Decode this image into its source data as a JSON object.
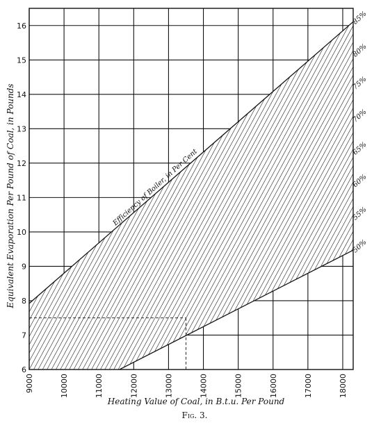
{
  "chart_data": {
    "type": "line",
    "title": "",
    "xlabel": "Heating Value of Coal, in B.t.u. Per Pound",
    "ylabel": "Equivalent Evaporation Per Pound of Coal, in Pounds",
    "xlim": [
      9000,
      18300
    ],
    "ylim": [
      6,
      16.5
    ],
    "x_ticks": [
      "9000",
      "10000",
      "11000",
      "12000",
      "13000",
      "14000",
      "15000",
      "16000",
      "17000",
      "18000"
    ],
    "y_ticks": [
      "6",
      "7",
      "8",
      "9",
      "10",
      "11",
      "12",
      "13",
      "14",
      "15",
      "16"
    ],
    "grid": true,
    "band_label": "Efficiency of Boiler, in Per Cent",
    "series": [
      {
        "name": "50%",
        "x": [
          9000,
          18300
        ],
        "y": [
          4.66,
          9.47
        ]
      },
      {
        "name": "55%",
        "x": [
          9000,
          18300
        ],
        "y": [
          5.12,
          10.42
        ]
      },
      {
        "name": "60%",
        "x": [
          9000,
          18300
        ],
        "y": [
          5.59,
          11.37
        ]
      },
      {
        "name": "65%",
        "x": [
          9000,
          18300
        ],
        "y": [
          6.06,
          12.31
        ]
      },
      {
        "name": "70%",
        "x": [
          9000,
          18300
        ],
        "y": [
          6.52,
          13.26
        ]
      },
      {
        "name": "75%",
        "x": [
          9000,
          18300
        ],
        "y": [
          6.99,
          14.21
        ]
      },
      {
        "name": "80%",
        "x": [
          9000,
          18300
        ],
        "y": [
          7.45,
          15.16
        ]
      },
      {
        "name": "85%",
        "x": [
          9000,
          18300
        ],
        "y": [
          7.92,
          16.11
        ]
      }
    ],
    "example": {
      "x": 13500,
      "y": 7.5
    },
    "caption": "Fig. 3."
  }
}
